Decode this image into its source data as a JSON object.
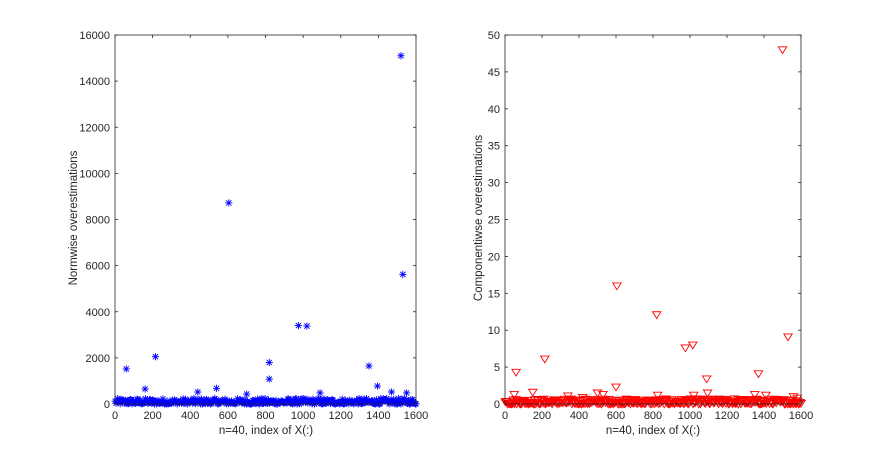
{
  "chart_data": [
    {
      "type": "scatter",
      "title": "",
      "xlabel": "n=40, index of X(:)",
      "ylabel": "Normwise overestimations",
      "xlim": [
        0,
        1600
      ],
      "ylim": [
        0,
        16000
      ],
      "xticks": [
        0,
        200,
        400,
        600,
        800,
        1000,
        1200,
        1400,
        1600
      ],
      "yticks": [
        0,
        2000,
        4000,
        6000,
        8000,
        10000,
        12000,
        14000,
        16000
      ],
      "grid": false,
      "marker": "asterisk",
      "color": "#0000ff",
      "notable_points": [
        [
          60,
          1520
        ],
        [
          160,
          650
        ],
        [
          215,
          2050
        ],
        [
          440,
          520
        ],
        [
          540,
          680
        ],
        [
          605,
          8720
        ],
        [
          700,
          430
        ],
        [
          820,
          1800
        ],
        [
          820,
          1080
        ],
        [
          975,
          3400
        ],
        [
          1020,
          3380
        ],
        [
          1090,
          480
        ],
        [
          1350,
          1650
        ],
        [
          1395,
          780
        ],
        [
          1470,
          520
        ],
        [
          1520,
          15100
        ],
        [
          1530,
          5620
        ],
        [
          1550,
          480
        ]
      ],
      "baseline_band": {
        "x_range": [
          1,
          1600
        ],
        "y_min": 0,
        "y_max": 240
      }
    },
    {
      "type": "scatter",
      "title": "",
      "xlabel": "n=40, index of X(:)",
      "ylabel": "Componentiwse overestimations",
      "xlim": [
        0,
        1600
      ],
      "ylim": [
        0,
        50
      ],
      "xticks": [
        0,
        200,
        400,
        600,
        800,
        1000,
        1200,
        1400,
        1600
      ],
      "yticks": [
        0,
        5,
        10,
        15,
        20,
        25,
        30,
        35,
        40,
        45,
        50
      ],
      "grid": false,
      "marker": "triangle-down",
      "color": "#ff0000",
      "notable_points": [
        [
          60,
          4.3
        ],
        [
          50,
          1.3
        ],
        [
          150,
          1.6
        ],
        [
          215,
          6.1
        ],
        [
          340,
          1.1
        ],
        [
          420,
          0.9
        ],
        [
          500,
          1.5
        ],
        [
          530,
          1.3
        ],
        [
          600,
          2.3
        ],
        [
          605,
          16.0
        ],
        [
          820,
          12.1
        ],
        [
          825,
          1.2
        ],
        [
          975,
          7.6
        ],
        [
          1015,
          8.0
        ],
        [
          1020,
          1.2
        ],
        [
          1090,
          3.4
        ],
        [
          1095,
          1.5
        ],
        [
          1240,
          0.7
        ],
        [
          1350,
          1.3
        ],
        [
          1370,
          4.1
        ],
        [
          1410,
          1.2
        ],
        [
          1500,
          48.0
        ],
        [
          1530,
          9.1
        ],
        [
          1560,
          1.0
        ],
        [
          1580,
          0.8
        ]
      ],
      "baseline_band": {
        "x_range": [
          1,
          1600
        ],
        "y_min": 0,
        "y_max": 0.7
      }
    }
  ]
}
